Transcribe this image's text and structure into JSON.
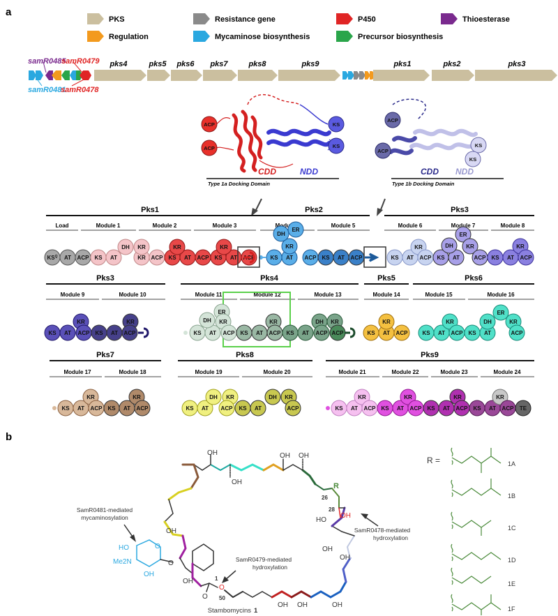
{
  "panel_a_label": "a",
  "panel_b_label": "b",
  "legend": [
    {
      "label": "PKS",
      "color": "#cbbf9f"
    },
    {
      "label": "Resistance gene",
      "color": "#8a8a8a"
    },
    {
      "label": "P450",
      "color": "#e02525"
    },
    {
      "label": "Thioesterase",
      "color": "#7a2a8e"
    },
    {
      "label": "Regulation",
      "color": "#f39a1e"
    },
    {
      "label": "Mycaminose biosynthesis",
      "color": "#2aa8e0"
    },
    {
      "label": "Precursor biosynthesis",
      "color": "#2aa54a"
    }
  ],
  "gene_labels": {
    "samR0485": "samR0485",
    "samR0479": "samR0479",
    "samR0481": "samR0481",
    "samR0478": "samR0478"
  },
  "pks_genes": [
    "pks4",
    "pks5",
    "pks6",
    "pks7",
    "pks8",
    "pks9",
    "pks1",
    "pks2",
    "pks3"
  ],
  "docking": {
    "type1a_title": "Type 1a Docking Domain",
    "type1b_title": "Type 1b Docking Domain",
    "cdd": "CDD",
    "ndd": "NDD",
    "acp": "ACP",
    "ks": "KS"
  },
  "proteins_row1": [
    "Pks1",
    "Pks2",
    "Pks3"
  ],
  "proteins_row2": [
    "Pks3",
    "Pks4",
    "Pks5",
    "Pks6"
  ],
  "proteins_row3": [
    "Pks7",
    "Pks8",
    "Pks9"
  ],
  "modules_row1": [
    "Load",
    "Module 1",
    "Module 2",
    "Module 3",
    "Module 4",
    "Module 5",
    "Module 6",
    "Module 7",
    "Module 8"
  ],
  "modules_row2": [
    "Module 9",
    "Module 10",
    "Module 11",
    "Module 12",
    "Module 13",
    "Module 14",
    "Module 15",
    "Module 16"
  ],
  "modules_row3": [
    "Module 17",
    "Module 18",
    "Module 19",
    "Module 20",
    "Module 21",
    "Module 22",
    "Module 23",
    "Module 24"
  ],
  "domain_names": {
    "ks": "KS",
    "ksq": "KS",
    "ksq_sup": "Q",
    "at": "AT",
    "acp": "ACP",
    "kr": "KR",
    "dh": "DH",
    "er": "ER",
    "te": "TE"
  },
  "structure": {
    "r_equals": "R =",
    "variants": [
      "1A",
      "1B",
      "1C",
      "1D",
      "1E",
      "1F"
    ],
    "annot_mycaminosylation": [
      "SamR0481-mediated",
      "mycaminosylation"
    ],
    "annot_hydroxylation_478": [
      "SamR0478-mediated",
      "hydroxylation"
    ],
    "annot_hydroxylation_479": [
      "SamR0479-mediated",
      "hydroxylation"
    ],
    "compound_name": "Stambomycins",
    "compound_number": "1",
    "atom_oh": "OH",
    "atom_ho": "HO",
    "atom_me2n": "Me2N",
    "atom_o": "O",
    "atom_r": "R",
    "num_26": "26",
    "num_28": "28",
    "num_1": "1",
    "num_50": "50"
  }
}
